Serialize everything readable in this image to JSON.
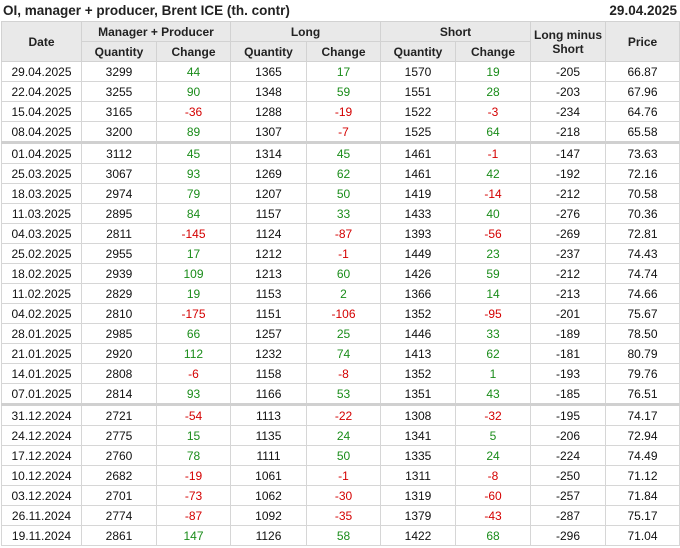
{
  "title": "OI, manager + producer, Brent ICE (th. contr)",
  "date": "29.04.2025",
  "colors": {
    "positive": "#1a8c1a",
    "negative": "#d40000",
    "header_bg": "#e9e9e9"
  },
  "headers": {
    "date": "Date",
    "group_mp": "Manager + Producer",
    "group_long": "Long",
    "group_short": "Short",
    "long_minus_short": "Long minus Short",
    "price": "Price",
    "quantity": "Quantity",
    "change": "Change"
  },
  "rows": [
    {
      "date": "29.04.2025",
      "mp_qty": "3299",
      "mp_chg": "44",
      "long_qty": "1365",
      "long_chg": "17",
      "short_qty": "1570",
      "short_chg": "19",
      "lms": "-205",
      "price": "66.87"
    },
    {
      "date": "22.04.2025",
      "mp_qty": "3255",
      "mp_chg": "90",
      "long_qty": "1348",
      "long_chg": "59",
      "short_qty": "1551",
      "short_chg": "28",
      "lms": "-203",
      "price": "67.96"
    },
    {
      "date": "15.04.2025",
      "mp_qty": "3165",
      "mp_chg": "-36",
      "long_qty": "1288",
      "long_chg": "-19",
      "short_qty": "1522",
      "short_chg": "-3",
      "lms": "-234",
      "price": "64.76"
    },
    {
      "date": "08.04.2025",
      "mp_qty": "3200",
      "mp_chg": "89",
      "long_qty": "1307",
      "long_chg": "-7",
      "short_qty": "1525",
      "short_chg": "64",
      "lms": "-218",
      "price": "65.58"
    },
    {
      "date": "01.04.2025",
      "mp_qty": "3112",
      "mp_chg": "45",
      "long_qty": "1314",
      "long_chg": "45",
      "short_qty": "1461",
      "short_chg": "-1",
      "lms": "-147",
      "price": "73.63",
      "separator": true
    },
    {
      "date": "25.03.2025",
      "mp_qty": "3067",
      "mp_chg": "93",
      "long_qty": "1269",
      "long_chg": "62",
      "short_qty": "1461",
      "short_chg": "42",
      "lms": "-192",
      "price": "72.16"
    },
    {
      "date": "18.03.2025",
      "mp_qty": "2974",
      "mp_chg": "79",
      "long_qty": "1207",
      "long_chg": "50",
      "short_qty": "1419",
      "short_chg": "-14",
      "lms": "-212",
      "price": "70.58"
    },
    {
      "date": "11.03.2025",
      "mp_qty": "2895",
      "mp_chg": "84",
      "long_qty": "1157",
      "long_chg": "33",
      "short_qty": "1433",
      "short_chg": "40",
      "lms": "-276",
      "price": "70.36"
    },
    {
      "date": "04.03.2025",
      "mp_qty": "2811",
      "mp_chg": "-145",
      "long_qty": "1124",
      "long_chg": "-87",
      "short_qty": "1393",
      "short_chg": "-56",
      "lms": "-269",
      "price": "72.81"
    },
    {
      "date": "25.02.2025",
      "mp_qty": "2955",
      "mp_chg": "17",
      "long_qty": "1212",
      "long_chg": "-1",
      "short_qty": "1449",
      "short_chg": "23",
      "lms": "-237",
      "price": "74.43"
    },
    {
      "date": "18.02.2025",
      "mp_qty": "2939",
      "mp_chg": "109",
      "long_qty": "1213",
      "long_chg": "60",
      "short_qty": "1426",
      "short_chg": "59",
      "lms": "-212",
      "price": "74.74"
    },
    {
      "date": "11.02.2025",
      "mp_qty": "2829",
      "mp_chg": "19",
      "long_qty": "1153",
      "long_chg": "2",
      "short_qty": "1366",
      "short_chg": "14",
      "lms": "-213",
      "price": "74.66"
    },
    {
      "date": "04.02.2025",
      "mp_qty": "2810",
      "mp_chg": "-175",
      "long_qty": "1151",
      "long_chg": "-106",
      "short_qty": "1352",
      "short_chg": "-95",
      "lms": "-201",
      "price": "75.67"
    },
    {
      "date": "28.01.2025",
      "mp_qty": "2985",
      "mp_chg": "66",
      "long_qty": "1257",
      "long_chg": "25",
      "short_qty": "1446",
      "short_chg": "33",
      "lms": "-189",
      "price": "78.50"
    },
    {
      "date": "21.01.2025",
      "mp_qty": "2920",
      "mp_chg": "112",
      "long_qty": "1232",
      "long_chg": "74",
      "short_qty": "1413",
      "short_chg": "62",
      "lms": "-181",
      "price": "80.79"
    },
    {
      "date": "14.01.2025",
      "mp_qty": "2808",
      "mp_chg": "-6",
      "long_qty": "1158",
      "long_chg": "-8",
      "short_qty": "1352",
      "short_chg": "1",
      "lms": "-193",
      "price": "79.76"
    },
    {
      "date": "07.01.2025",
      "mp_qty": "2814",
      "mp_chg": "93",
      "long_qty": "1166",
      "long_chg": "53",
      "short_qty": "1351",
      "short_chg": "43",
      "lms": "-185",
      "price": "76.51"
    },
    {
      "date": "31.12.2024",
      "mp_qty": "2721",
      "mp_chg": "-54",
      "long_qty": "1113",
      "long_chg": "-22",
      "short_qty": "1308",
      "short_chg": "-32",
      "lms": "-195",
      "price": "74.17",
      "separator": true
    },
    {
      "date": "24.12.2024",
      "mp_qty": "2775",
      "mp_chg": "15",
      "long_qty": "1135",
      "long_chg": "24",
      "short_qty": "1341",
      "short_chg": "5",
      "lms": "-206",
      "price": "72.94"
    },
    {
      "date": "17.12.2024",
      "mp_qty": "2760",
      "mp_chg": "78",
      "long_qty": "1111",
      "long_chg": "50",
      "short_qty": "1335",
      "short_chg": "24",
      "lms": "-224",
      "price": "74.49"
    },
    {
      "date": "10.12.2024",
      "mp_qty": "2682",
      "mp_chg": "-19",
      "long_qty": "1061",
      "long_chg": "-1",
      "short_qty": "1311",
      "short_chg": "-8",
      "lms": "-250",
      "price": "71.12"
    },
    {
      "date": "03.12.2024",
      "mp_qty": "2701",
      "mp_chg": "-73",
      "long_qty": "1062",
      "long_chg": "-30",
      "short_qty": "1319",
      "short_chg": "-60",
      "lms": "-257",
      "price": "71.84"
    },
    {
      "date": "26.11.2024",
      "mp_qty": "2774",
      "mp_chg": "-87",
      "long_qty": "1092",
      "long_chg": "-35",
      "short_qty": "1379",
      "short_chg": "-43",
      "lms": "-287",
      "price": "75.17"
    },
    {
      "date": "19.11.2024",
      "mp_qty": "2861",
      "mp_chg": "147",
      "long_qty": "1126",
      "long_chg": "58",
      "short_qty": "1422",
      "short_chg": "68",
      "lms": "-296",
      "price": "71.04"
    }
  ]
}
